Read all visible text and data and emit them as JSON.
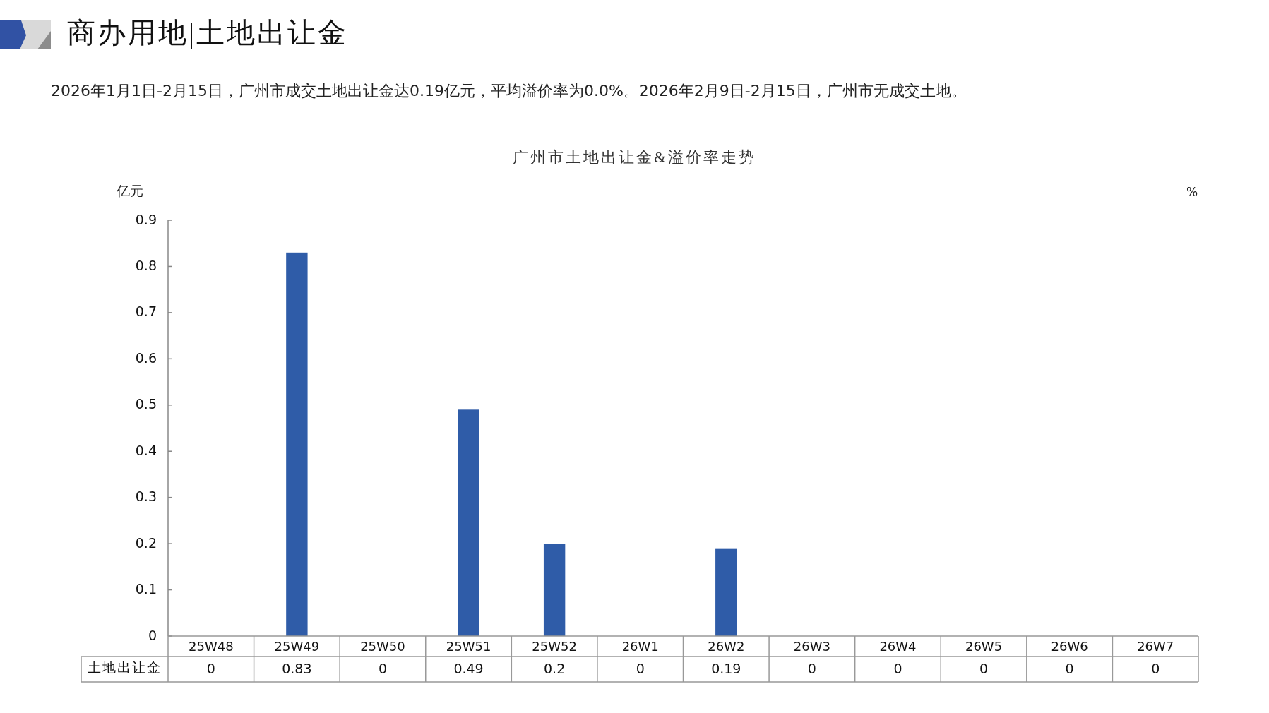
{
  "chart_data": {
    "type": "bar",
    "title": "商办用地|土地出让金",
    "subtitle": "2026年1月1日-2月15日，广州市成交土地出让金达0.19亿元，平均溢价率为0.0%。2026年2月9日-2月15日，广州市无成交土地。",
    "annotations": [
      "广州市土地出让金&溢价率走势"
    ],
    "ylabel": "亿元",
    "y2label": "%",
    "categories": [
      "25W48",
      "25W49",
      "25W50",
      "25W51",
      "25W52",
      "26W1",
      "26W2",
      "26W3",
      "26W4",
      "26W5",
      "26W6",
      "26W7"
    ],
    "series": [
      {
        "name": "土地出让金",
        "color": "#2f5ca8",
        "values": [
          0,
          0.83,
          0,
          0.49,
          0.2,
          0,
          0.19,
          0,
          0,
          0,
          0,
          0
        ]
      }
    ],
    "ylim": [
      0,
      0.9
    ],
    "yticks": [
      0,
      0.1,
      0.2,
      0.3,
      0.4,
      0.5,
      0.6,
      0.7,
      0.8,
      0.9
    ],
    "data_labels": true
  }
}
